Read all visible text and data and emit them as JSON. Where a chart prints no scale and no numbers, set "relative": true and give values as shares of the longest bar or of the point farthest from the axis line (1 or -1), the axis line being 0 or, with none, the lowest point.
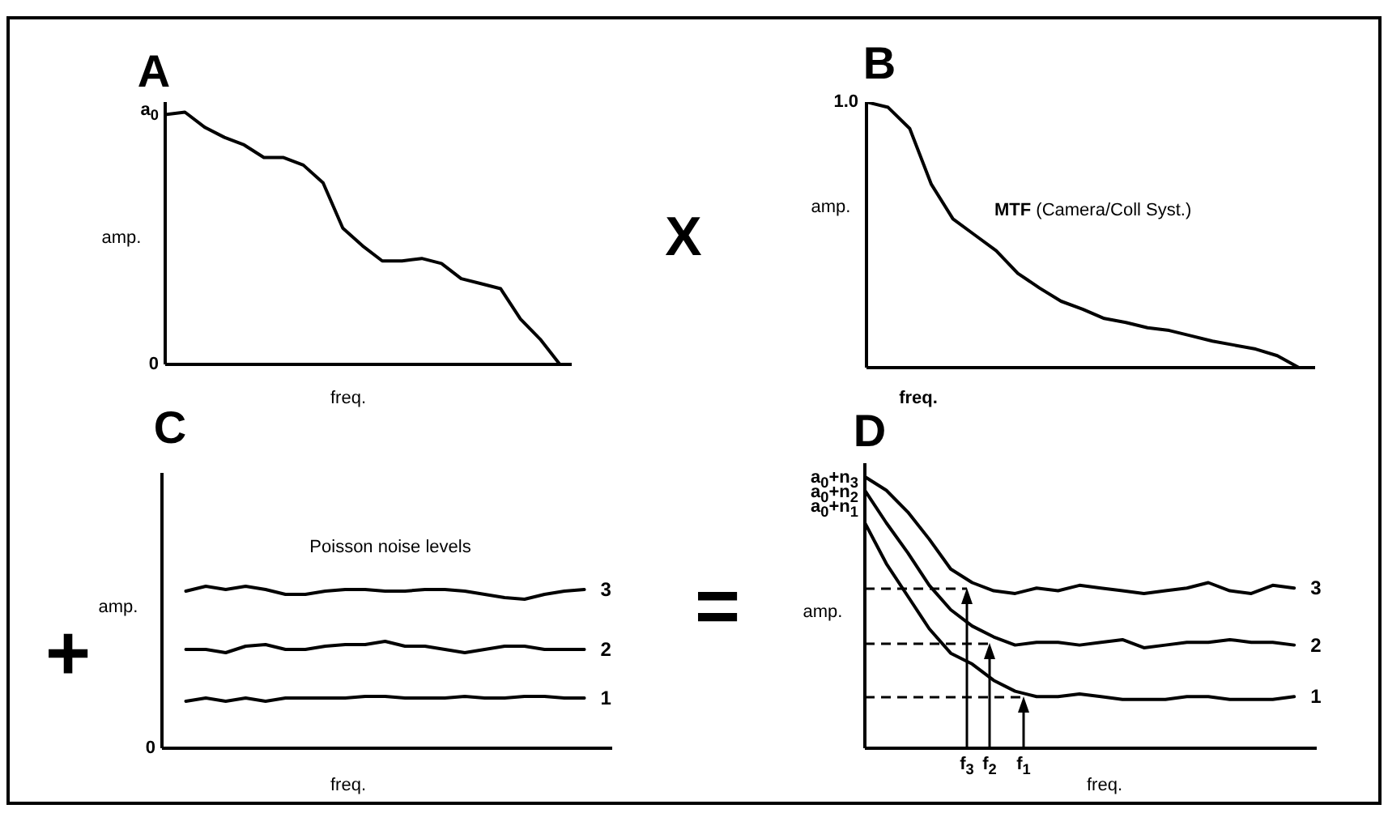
{
  "chart_data": [
    {
      "type": "line",
      "title": "A",
      "xlabel": "freq.",
      "ylabel": "amp.",
      "relative": true,
      "categories": [
        null,
        null,
        null,
        null,
        null,
        null,
        null,
        null,
        null,
        null,
        null,
        null,
        null,
        null,
        null,
        null,
        null,
        null,
        null,
        null,
        null
      ],
      "annotations": [
        "a$_{0}$",
        "0"
      ],
      "series": [
        {
          "color": "#000000",
          "values": [
            0.99,
            1.0,
            0.94,
            0.9,
            0.87,
            0.82,
            0.82,
            0.79,
            0.72,
            0.54,
            0.47,
            0.41,
            0.41,
            0.42,
            0.4,
            0.34,
            0.32,
            0.3,
            0.18,
            0.1,
            0
          ]
        }
      ]
    },
    {
      "type": "line",
      "title": "B",
      "xlabel": "freq.",
      "ylabel": "amp.",
      "relative": true,
      "categories": [
        null,
        null,
        null,
        null,
        null,
        null,
        null,
        null,
        null,
        null,
        null,
        null,
        null,
        null,
        null,
        null,
        null,
        null,
        null,
        null,
        null
      ],
      "annotations": [
        "1.0",
        "MTF (Camera/Coll Syst.)",
        "X"
      ],
      "series": [
        {
          "color": "#000000",
          "values": [
            1.0,
            0.98,
            0.9,
            0.69,
            0.56,
            0.5,
            0.44,
            0.355,
            0.3,
            0.25,
            0.22,
            0.185,
            0.17,
            0.15,
            0.14,
            0.12,
            0.1,
            0.085,
            0.07,
            0.045,
            0
          ]
        }
      ]
    },
    {
      "type": "line",
      "title": "C",
      "xlabel": "freq.",
      "ylabel": "amp.",
      "relative": true,
      "categories": [
        null,
        null,
        null,
        null,
        null,
        null,
        null,
        null,
        null,
        null,
        null,
        null,
        null,
        null,
        null,
        null,
        null,
        null,
        null,
        null,
        null
      ],
      "annotations": [
        "0",
        "Poisson noise levels",
        "+"
      ],
      "series": [
        {
          "name": "3",
          "color": "#000000",
          "values": [
            0.97,
            1.0,
            0.98,
            1.0,
            0.98,
            0.95,
            0.95,
            0.97,
            0.98,
            0.98,
            0.97,
            0.97,
            0.98,
            0.98,
            0.97,
            0.95,
            0.93,
            0.92,
            0.95,
            0.97,
            0.98
          ]
        },
        {
          "name": "2",
          "color": "#000000",
          "values": [
            0.61,
            0.61,
            0.59,
            0.63,
            0.64,
            0.61,
            0.61,
            0.63,
            0.64,
            0.64,
            0.66,
            0.63,
            0.63,
            0.61,
            0.59,
            0.61,
            0.63,
            0.63,
            0.61,
            0.61,
            0.61
          ]
        },
        {
          "name": "1",
          "color": "#000000",
          "values": [
            0.29,
            0.31,
            0.29,
            0.31,
            0.29,
            0.31,
            0.31,
            0.31,
            0.31,
            0.32,
            0.32,
            0.31,
            0.31,
            0.31,
            0.32,
            0.31,
            0.31,
            0.32,
            0.32,
            0.31,
            0.31
          ]
        }
      ]
    },
    {
      "type": "line",
      "title": "D",
      "xlabel": "freq.",
      "ylabel": "amp.",
      "relative": true,
      "categories": [
        null,
        null,
        null,
        null,
        null,
        null,
        null,
        null,
        null,
        null,
        null,
        null,
        null,
        null,
        null,
        null,
        null,
        null,
        null,
        null,
        null
      ],
      "annotations": [
        "a$_{0}$+n$_{3}$",
        "a$_{0}$+n$_{2}$",
        "a$_{0}$+n$_{1}$",
        "f$_{3}$",
        "f$_{2}$",
        "f$_{1}$",
        "="
      ],
      "series": [
        {
          "name": "3",
          "color": "#000000",
          "values": [
            1.0,
            0.95,
            0.87,
            0.77,
            0.66,
            0.61,
            0.58,
            0.57,
            0.59,
            0.58,
            0.6,
            0.59,
            0.58,
            0.57,
            0.58,
            0.59,
            0.61,
            0.58,
            0.57,
            0.6,
            0.59
          ]
        },
        {
          "name": "2",
          "color": "#000000",
          "values": [
            0.95,
            0.83,
            0.72,
            0.6,
            0.51,
            0.45,
            0.41,
            0.38,
            0.39,
            0.39,
            0.38,
            0.39,
            0.4,
            0.37,
            0.38,
            0.39,
            0.39,
            0.4,
            0.39,
            0.39,
            0.38
          ]
        },
        {
          "name": "1",
          "color": "#000000",
          "values": [
            0.83,
            0.68,
            0.56,
            0.44,
            0.35,
            0.31,
            0.25,
            0.21,
            0.19,
            0.19,
            0.2,
            0.19,
            0.18,
            0.18,
            0.18,
            0.19,
            0.19,
            0.18,
            0.18,
            0.18,
            0.19
          ]
        }
      ]
    }
  ]
}
